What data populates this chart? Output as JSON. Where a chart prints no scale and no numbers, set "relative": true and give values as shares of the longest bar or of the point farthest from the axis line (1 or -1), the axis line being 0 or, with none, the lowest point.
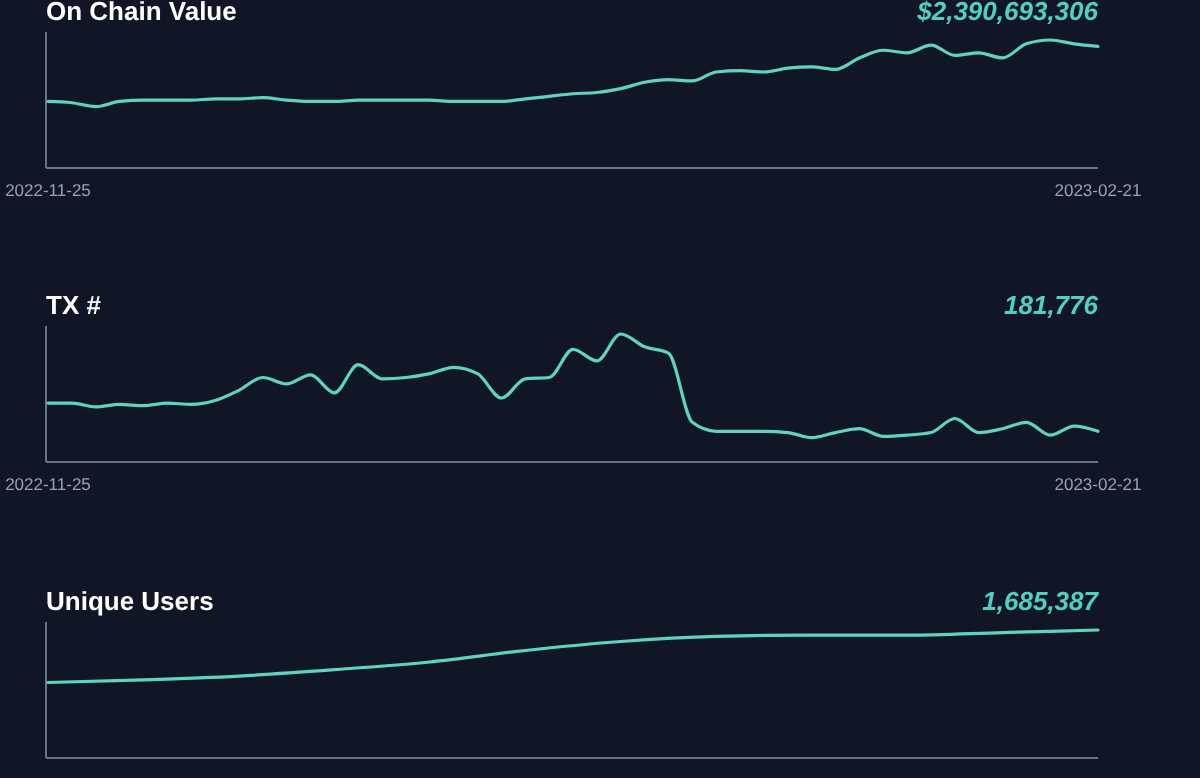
{
  "chart_data": [
    {
      "type": "line",
      "title": "On Chain Value",
      "annotations": [
        "$2,390,693,306"
      ],
      "relative": true,
      "x": [
        "2022-11-25",
        "2022-11-27",
        "2022-11-29",
        "2022-12-01",
        "2022-12-03",
        "2022-12-05",
        "2022-12-07",
        "2022-12-09",
        "2022-12-11",
        "2022-12-13",
        "2022-12-15",
        "2022-12-17",
        "2022-12-19",
        "2022-12-21",
        "2022-12-23",
        "2022-12-25",
        "2022-12-27",
        "2022-12-29",
        "2022-12-31",
        "2023-01-02",
        "2023-01-04",
        "2023-01-06",
        "2023-01-08",
        "2023-01-10",
        "2023-01-12",
        "2023-01-14",
        "2023-01-16",
        "2023-01-18",
        "2023-01-20",
        "2023-01-22",
        "2023-01-24",
        "2023-01-26",
        "2023-01-28",
        "2023-01-30",
        "2023-02-01",
        "2023-02-03",
        "2023-02-05",
        "2023-02-07",
        "2023-02-09",
        "2023-02-11",
        "2023-02-13",
        "2023-02-15",
        "2023-02-17",
        "2023-02-19",
        "2023-02-21"
      ],
      "xlim": [
        "2022-11-25",
        "2023-02-21"
      ],
      "xticks": [
        "2022-11-25",
        "2023-02-21"
      ],
      "series": [
        {
          "color": "#5fd3bf",
          "values": [
            0.52,
            0.51,
            0.48,
            0.52,
            0.53,
            0.53,
            0.53,
            0.54,
            0.54,
            0.55,
            0.53,
            0.52,
            0.52,
            0.53,
            0.53,
            0.53,
            0.53,
            0.52,
            0.52,
            0.52,
            0.54,
            0.56,
            0.58,
            0.59,
            0.62,
            0.67,
            0.69,
            0.68,
            0.75,
            0.76,
            0.75,
            0.78,
            0.79,
            0.77,
            0.86,
            0.92,
            0.9,
            0.96,
            0.88,
            0.9,
            0.86,
            0.97,
            1.0,
            0.97,
            0.95
          ]
        }
      ]
    },
    {
      "type": "line",
      "title": "TX #",
      "annotations": [
        "181,776"
      ],
      "relative": true,
      "x": [
        "2022-11-25",
        "2022-11-27",
        "2022-11-29",
        "2022-12-01",
        "2022-12-03",
        "2022-12-05",
        "2022-12-07",
        "2022-12-09",
        "2022-12-11",
        "2022-12-13",
        "2022-12-15",
        "2022-12-17",
        "2022-12-19",
        "2022-12-21",
        "2022-12-23",
        "2022-12-25",
        "2022-12-27",
        "2022-12-29",
        "2022-12-31",
        "2023-01-02",
        "2023-01-04",
        "2023-01-06",
        "2023-01-08",
        "2023-01-10",
        "2023-01-12",
        "2023-01-14",
        "2023-01-16",
        "2023-01-18",
        "2023-01-20",
        "2023-01-22",
        "2023-01-24",
        "2023-01-26",
        "2023-01-28",
        "2023-01-30",
        "2023-02-01",
        "2023-02-03",
        "2023-02-05",
        "2023-02-07",
        "2023-02-09",
        "2023-02-11",
        "2023-02-13",
        "2023-02-15",
        "2023-02-17",
        "2023-02-19",
        "2023-02-21"
      ],
      "xlim": [
        "2022-11-25",
        "2023-02-21"
      ],
      "xticks": [
        "2022-11-25",
        "2023-02-21"
      ],
      "series": [
        {
          "color": "#5fd3bf",
          "values": [
            0.46,
            0.46,
            0.43,
            0.45,
            0.44,
            0.46,
            0.45,
            0.48,
            0.56,
            0.66,
            0.61,
            0.68,
            0.54,
            0.76,
            0.65,
            0.66,
            0.69,
            0.74,
            0.69,
            0.5,
            0.65,
            0.66,
            0.88,
            0.79,
            1.0,
            0.9,
            0.85,
            0.31,
            0.24,
            0.24,
            0.24,
            0.23,
            0.19,
            0.23,
            0.26,
            0.2,
            0.21,
            0.23,
            0.34,
            0.23,
            0.26,
            0.31,
            0.21,
            0.28,
            0.24
          ]
        }
      ]
    },
    {
      "type": "line",
      "title": "Unique Users",
      "annotations": [
        "1,685,387"
      ],
      "relative": true,
      "categories": [
        null,
        null,
        null,
        null,
        null,
        null,
        null,
        null,
        null,
        null,
        null,
        null
      ],
      "series": [
        {
          "color": "#5fd3bf",
          "values": [
            0.59,
            0.61,
            0.64,
            0.69,
            0.75,
            0.84,
            0.91,
            0.95,
            0.96,
            0.96,
            0.98,
            1.0
          ]
        }
      ]
    }
  ]
}
